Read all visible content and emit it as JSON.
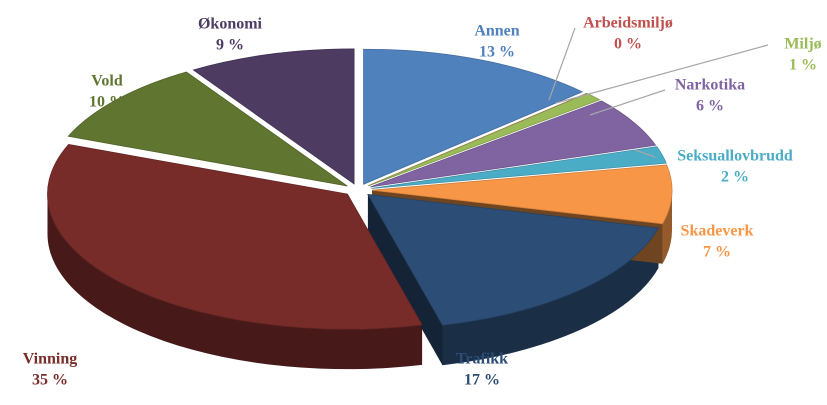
{
  "chart_data": {
    "type": "pie",
    "categories": [
      "Annen",
      "Arbeidsmiljø",
      "Miljø",
      "Narkotika",
      "Seksuallovbrudd",
      "Skadeverk",
      "Trafikk",
      "Vinning",
      "Vold",
      "Økonomi"
    ],
    "values": [
      13,
      0,
      1,
      6,
      2,
      7,
      17,
      35,
      10,
      9
    ],
    "value_labels": [
      "13 %",
      "0 %",
      "1 %",
      "6 %",
      "2 %",
      "7 %",
      "17 %",
      "35 %",
      "10 %",
      "9 %"
    ],
    "colors": [
      "#4f81bd",
      "#c0504d",
      "#9bbb59",
      "#8064a2",
      "#4bacc6",
      "#f79646",
      "#2c4d75",
      "#772c2a",
      "#5f7530",
      "#4d3b62"
    ]
  }
}
